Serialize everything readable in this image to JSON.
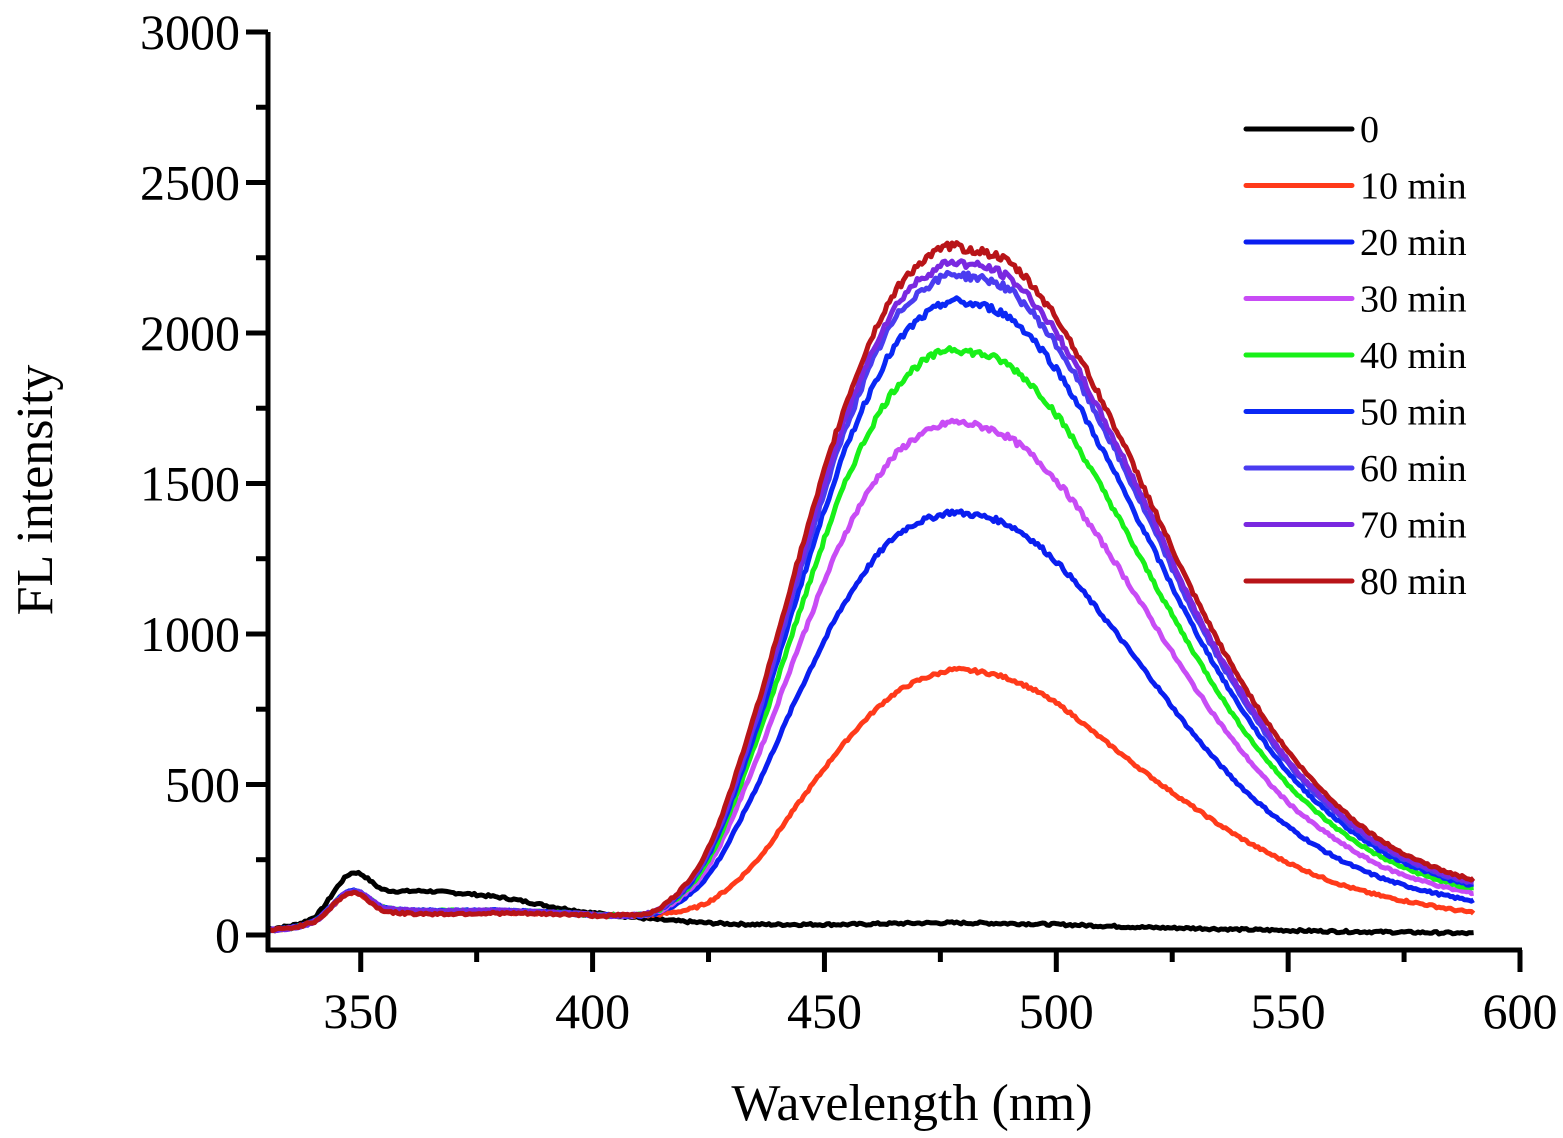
{
  "chart_data": {
    "type": "line",
    "title": "",
    "xlabel": "Wavelength (nm)",
    "ylabel": "FL intensity",
    "xlim": [
      330,
      600
    ],
    "ylim": [
      -50,
      3000
    ],
    "xticks": [
      350,
      400,
      450,
      500,
      550,
      600
    ],
    "yticks": [
      0,
      500,
      1000,
      1500,
      2000,
      2500,
      3000
    ],
    "grid": false,
    "legend_position": "top-right",
    "x": [
      330,
      340,
      348,
      355,
      365,
      380,
      395,
      405,
      415,
      425,
      435,
      445,
      455,
      465,
      475,
      480,
      490,
      500,
      510,
      520,
      530,
      540,
      550,
      560,
      570,
      580,
      590
    ],
    "series": [
      {
        "name": "0",
        "color": "#000000",
        "values": [
          20,
          60,
          205,
          150,
          145,
          125,
          85,
          65,
          50,
          40,
          35,
          35,
          35,
          38,
          40,
          40,
          38,
          35,
          30,
          25,
          22,
          18,
          15,
          12,
          10,
          8,
          5
        ]
      },
      {
        "name": "10 min",
        "color": "#ff3a1a",
        "values": [
          15,
          45,
          140,
          85,
          75,
          75,
          70,
          65,
          70,
          110,
          240,
          450,
          650,
          800,
          870,
          880,
          850,
          770,
          650,
          530,
          420,
          320,
          240,
          175,
          130,
          100,
          75
        ]
      },
      {
        "name": "20 min",
        "color": "#0a1ef0",
        "values": [
          15,
          45,
          145,
          90,
          80,
          80,
          72,
          65,
          80,
          200,
          480,
          820,
          1120,
          1320,
          1395,
          1400,
          1360,
          1240,
          1060,
          860,
          660,
          490,
          360,
          260,
          190,
          145,
          115
        ]
      },
      {
        "name": "30 min",
        "color": "#c84cf5",
        "values": [
          15,
          45,
          145,
          90,
          80,
          80,
          72,
          65,
          85,
          230,
          570,
          980,
          1350,
          1590,
          1690,
          1700,
          1650,
          1510,
          1300,
          1060,
          820,
          610,
          440,
          320,
          230,
          175,
          140
        ]
      },
      {
        "name": "40 min",
        "color": "#18f018",
        "values": [
          15,
          45,
          145,
          90,
          80,
          80,
          72,
          65,
          88,
          250,
          630,
          1090,
          1520,
          1810,
          1935,
          1940,
          1890,
          1730,
          1480,
          1200,
          930,
          690,
          500,
          360,
          260,
          195,
          155
        ]
      },
      {
        "name": "50 min",
        "color": "#0a28f5",
        "values": [
          15,
          45,
          145,
          90,
          80,
          80,
          72,
          65,
          90,
          265,
          670,
          1170,
          1630,
          1950,
          2090,
          2100,
          2050,
          1880,
          1610,
          1310,
          1010,
          750,
          540,
          390,
          280,
          210,
          165
        ]
      },
      {
        "name": "60 min",
        "color": "#4a3cf0",
        "values": [
          15,
          45,
          145,
          90,
          80,
          80,
          72,
          65,
          92,
          275,
          700,
          1220,
          1700,
          2040,
          2180,
          2190,
          2140,
          1960,
          1690,
          1380,
          1060,
          790,
          570,
          410,
          295,
          220,
          172
        ]
      },
      {
        "name": "70 min",
        "color": "#7a28e0",
        "values": [
          15,
          45,
          145,
          90,
          80,
          80,
          72,
          65,
          93,
          280,
          715,
          1245,
          1735,
          2080,
          2220,
          2230,
          2180,
          2000,
          1720,
          1410,
          1080,
          805,
          580,
          420,
          300,
          225,
          176
        ]
      },
      {
        "name": "80 min",
        "color": "#b81418",
        "values": [
          15,
          45,
          140,
          80,
          70,
          72,
          68,
          65,
          95,
          290,
          735,
          1280,
          1780,
          2130,
          2275,
          2280,
          2230,
          2050,
          1770,
          1450,
          1120,
          840,
          610,
          440,
          315,
          235,
          185
        ]
      }
    ]
  }
}
